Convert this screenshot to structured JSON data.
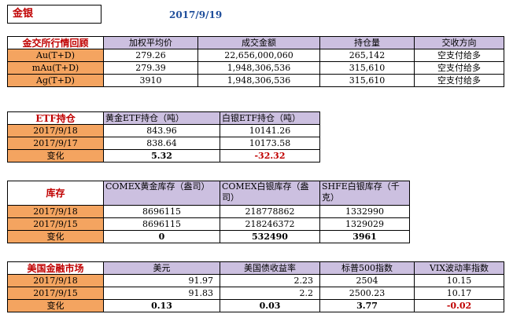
{
  "header": {
    "title": "金银",
    "date": "2017/9/19"
  },
  "exchange": {
    "title": "金交所行情回顾",
    "columns": [
      "加权平均价",
      "成交金额",
      "持仓量",
      "交收方向"
    ],
    "rows": [
      [
        "Au(T+D)",
        "279.26",
        "22,656,000,060",
        "265,142",
        "空支付给多"
      ],
      [
        "mAu(T+D)",
        "279.39",
        "1,948,306,536",
        "315,610",
        "空支付给多"
      ],
      [
        "Ag(T+D)",
        "3910",
        "1,948,306,536",
        "315,610",
        "空支付给多"
      ]
    ]
  },
  "etf": {
    "title": "ETF持仓",
    "columns": [
      "黄金ETF持仓（吨）",
      "白银ETF持仓（吨）"
    ],
    "rows": [
      [
        "2017/9/18",
        "843.96",
        "10141.26"
      ],
      [
        "2017/9/17",
        "838.64",
        "10173.58"
      ]
    ],
    "change": [
      "变化",
      "5.32",
      "-32.32"
    ]
  },
  "stock": {
    "title": "库存",
    "columns": [
      "COMEX黄金库存（盎司）",
      "COMEX白银库存（盎司）",
      "SHFE白银库存（千克）"
    ],
    "rows": [
      [
        "2017/9/18",
        "8696115",
        "218778862",
        "1332990"
      ],
      [
        "2017/9/15",
        "8696115",
        "218246372",
        "1329029"
      ]
    ],
    "change": [
      "变化",
      "0",
      "532490",
      "3961"
    ]
  },
  "us_market": {
    "title": "美国金融市场",
    "columns": [
      "美元",
      "美国债收益率",
      "标普500指数",
      "VIX波动率指数"
    ],
    "rows": [
      [
        "2017/9/18",
        "91.97",
        "2.23",
        "2504",
        "10.15"
      ],
      [
        "2017/9/15",
        "91.83",
        "2.2",
        "2500.23",
        "10.17"
      ]
    ],
    "change": [
      "变化",
      "0.13",
      "0.03",
      "3.77",
      "-0.02"
    ]
  }
}
